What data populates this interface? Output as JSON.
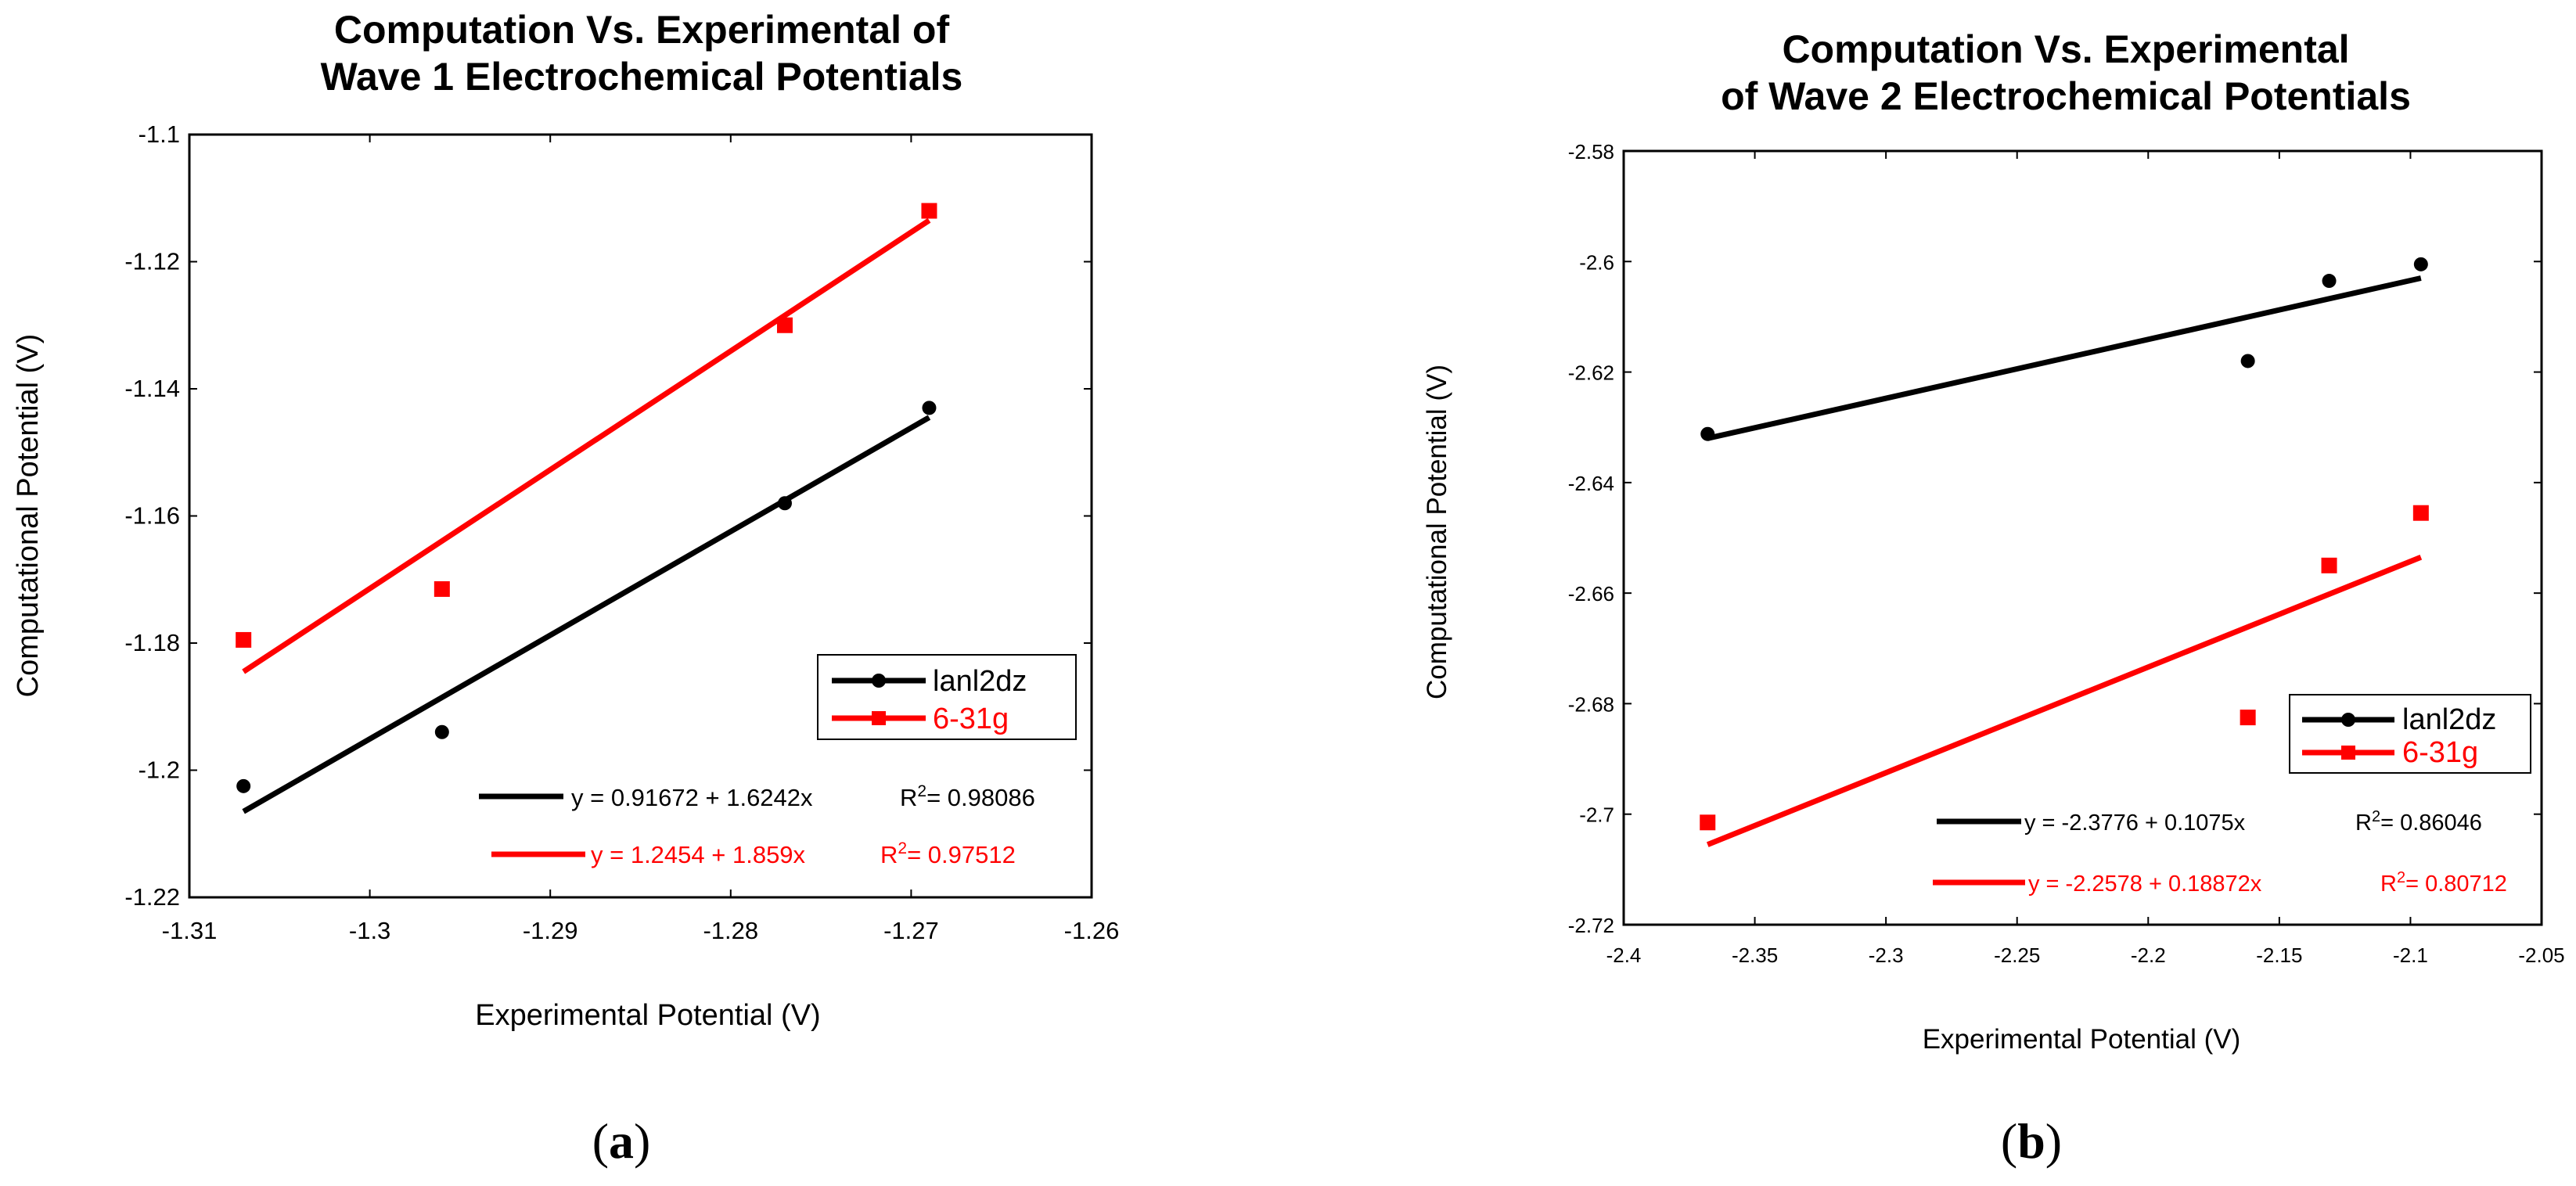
{
  "chart_data": [
    {
      "type": "scatter",
      "title_lines": [
        "Computation Vs. Experimental of",
        "Wave 1 Electrochemical Potentials"
      ],
      "xlabel": "Experimental Potential (V)",
      "ylabel": "Computational Potential (V)",
      "xlim": [
        -1.31,
        -1.26
      ],
      "ylim": [
        -1.22,
        -1.1
      ],
      "xticks": [
        "-1.31",
        "-1.3",
        "-1.29",
        "-1.28",
        "-1.27",
        "-1.26"
      ],
      "yticks": [
        "-1.1",
        "-1.12",
        "-1.14",
        "-1.16",
        "-1.18",
        "-1.2",
        "-1.22"
      ],
      "caption_letter": "a",
      "series": [
        {
          "name": "lanl2dz",
          "color": "#000000",
          "marker": "circle",
          "x": [
            -1.307,
            -1.296,
            -1.277,
            -1.269
          ],
          "y": [
            -1.2025,
            -1.194,
            -1.158,
            -1.143
          ],
          "fit_text": "y = 0.91672 + 1.6242x",
          "r2_prefix": "R",
          "r2_sup": "2",
          "r2_value": "= 0.98086",
          "fit_line": {
            "x": [
              -1.307,
              -1.269
            ],
            "y": [
              -1.2065,
              -1.1445
            ]
          }
        },
        {
          "name": "6-31g",
          "color": "#ff0000",
          "marker": "square",
          "x": [
            -1.307,
            -1.296,
            -1.277,
            -1.269
          ],
          "y": [
            -1.1795,
            -1.1715,
            -1.13,
            -1.112
          ],
          "fit_text": "y = 1.2454 + 1.859x",
          "r2_prefix": "R",
          "r2_sup": "2",
          "r2_value": "= 0.97512",
          "fit_line": {
            "x": [
              -1.307,
              -1.269
            ],
            "y": [
              -1.1845,
              -1.1135
            ]
          }
        }
      ]
    },
    {
      "type": "scatter",
      "title_lines": [
        "Computation Vs. Experimental",
        "of Wave 2 Electrochemical Potentials"
      ],
      "xlabel": "Experimental Potential (V)",
      "ylabel": "Computational Potential (V)",
      "xlim": [
        -2.4,
        -2.05
      ],
      "ylim": [
        -2.72,
        -2.58
      ],
      "xticks": [
        "-2.4",
        "-2.35",
        "-2.3",
        "-2.25",
        "-2.2",
        "-2.15",
        "-2.1",
        "-2.05"
      ],
      "yticks": [
        "-2.58",
        "-2.6",
        "-2.62",
        "-2.64",
        "-2.66",
        "-2.68",
        "-2.7",
        "-2.72"
      ],
      "caption_letter": "b",
      "series": [
        {
          "name": "lanl2dz",
          "color": "#000000",
          "marker": "circle",
          "x": [
            -2.368,
            -2.162,
            -2.131,
            -2.096
          ],
          "y": [
            -2.6312,
            -2.618,
            -2.6035,
            -2.6005
          ],
          "fit_text": "y = -2.3776 + 0.1075x",
          "r2_prefix": "R",
          "r2_sup": "2",
          "r2_value": "= 0.86046",
          "fit_line": {
            "x": [
              -2.368,
              -2.096
            ],
            "y": [
              -2.632,
              -2.603
            ]
          }
        },
        {
          "name": "6-31g",
          "color": "#ff0000",
          "marker": "square",
          "x": [
            -2.368,
            -2.162,
            -2.131,
            -2.096
          ],
          "y": [
            -2.7015,
            -2.6825,
            -2.655,
            -2.6455
          ],
          "fit_text": "y = -2.2578 + 0.18872x",
          "r2_prefix": "R",
          "r2_sup": "2",
          "r2_value": "= 0.80712",
          "fit_line": {
            "x": [
              -2.368,
              -2.096
            ],
            "y": [
              -2.7055,
              -2.6535
            ]
          }
        }
      ]
    }
  ]
}
